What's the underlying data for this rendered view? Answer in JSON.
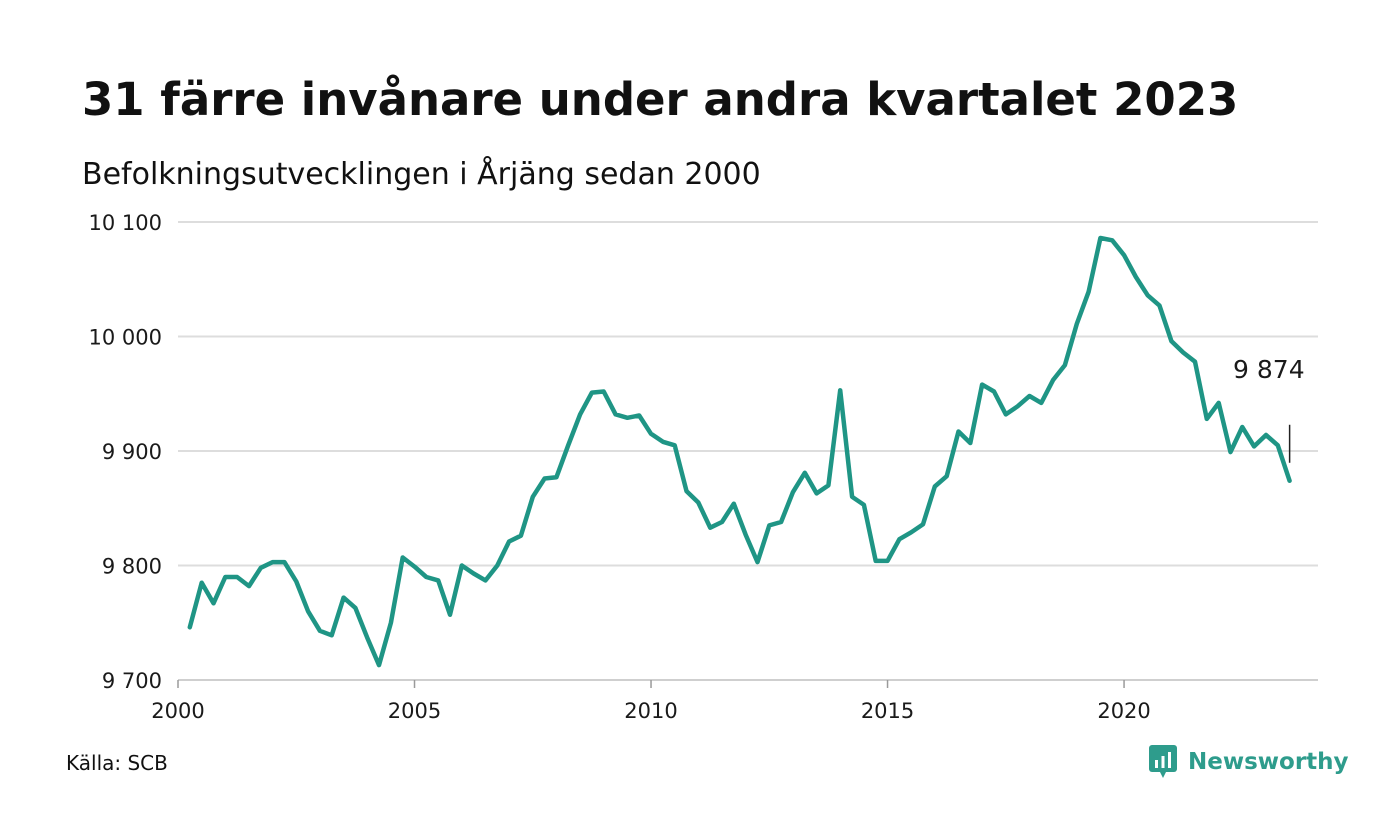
{
  "title": "31 färre invånare under andra kvartalet 2023",
  "subtitle": "Befolkningsutvecklingen i Årjäng sedan 2000",
  "source": "Källa: SCB",
  "brand": {
    "name": "Newsworthy",
    "icon": "newsworthy-logo-icon"
  },
  "colors": {
    "line": "#1f9585",
    "grid": "#dddddd",
    "text": "#111111",
    "brand": "#2e9c8c"
  },
  "chart_data": {
    "type": "line",
    "title": "31 färre invånare under andra kvartalet 2023",
    "subtitle": "Befolkningsutvecklingen i Årjäng sedan 2000",
    "xlabel": "",
    "ylabel": "",
    "xlim": [
      2000,
      2024.1
    ],
    "ylim": [
      9700,
      10100
    ],
    "grid": true,
    "legend": "none",
    "x_ticks": [
      {
        "value": 2000,
        "label": "2000"
      },
      {
        "value": 2005,
        "label": "2005"
      },
      {
        "value": 2010,
        "label": "2010"
      },
      {
        "value": 2015,
        "label": "2015"
      },
      {
        "value": 2020,
        "label": "2020"
      }
    ],
    "y_ticks": [
      {
        "value": 9700,
        "label": "9 700"
      },
      {
        "value": 9800,
        "label": "9 800"
      },
      {
        "value": 9900,
        "label": "9 900"
      },
      {
        "value": 10000,
        "label": "10 000"
      },
      {
        "value": 10100,
        "label": "10 100"
      }
    ],
    "annotation": {
      "label": "9 874",
      "value": 9874
    },
    "series": [
      {
        "x": [
          2000.25,
          2000.5,
          2000.75,
          2001,
          2001.25,
          2001.5,
          2001.75,
          2002,
          2002.25,
          2002.5,
          2002.75,
          2003,
          2003.25,
          2003.5,
          2003.75,
          2004,
          2004.25,
          2004.5,
          2004.75,
          2005,
          2005.25,
          2005.5,
          2005.75,
          2006,
          2006.25,
          2006.5,
          2006.75,
          2007,
          2007.25,
          2007.5,
          2007.75,
          2008,
          2008.25,
          2008.5,
          2008.75,
          2009,
          2009.25,
          2009.5,
          2009.75,
          2010,
          2010.25,
          2010.5,
          2010.75,
          2011,
          2011.25,
          2011.5,
          2011.75,
          2012,
          2012.25,
          2012.5,
          2012.75,
          2013,
          2013.25,
          2013.5,
          2013.75,
          2014,
          2014.25,
          2014.5,
          2014.75,
          2015,
          2015.25,
          2015.5,
          2015.75,
          2016,
          2016.25,
          2016.5,
          2016.75,
          2017,
          2017.25,
          2017.5,
          2017.75,
          2018,
          2018.25,
          2018.5,
          2018.75,
          2019,
          2019.25,
          2019.5,
          2019.75,
          2020,
          2020.25,
          2020.5,
          2020.75,
          2021,
          2021.25,
          2021.5,
          2021.75,
          2022,
          2022.25,
          2022.5,
          2022.75,
          2023,
          2023.25,
          2023.5
        ],
        "values": [
          9746,
          9785,
          9767,
          9790,
          9790,
          9782,
          9798,
          9803,
          9803,
          9786,
          9760,
          9743,
          9739,
          9772,
          9763,
          9737,
          9713,
          9750,
          9807,
          9799,
          9790,
          9787,
          9757,
          9800,
          9793,
          9787,
          9800,
          9821,
          9826,
          9860,
          9876,
          9877,
          9905,
          9932,
          9951,
          9952,
          9932,
          9929,
          9931,
          9915,
          9908,
          9905,
          9865,
          9855,
          9833,
          9838,
          9854,
          9827,
          9803,
          9835,
          9838,
          9864,
          9881,
          9863,
          9870,
          9953,
          9860,
          9853,
          9804,
          9804,
          9823,
          9829,
          9836,
          9869,
          9878,
          9917,
          9907,
          9958,
          9952,
          9932,
          9939,
          9948,
          9942,
          9962,
          9975,
          10011,
          10039,
          10086,
          10084,
          10071,
          10052,
          10036,
          10027,
          9996,
          9986,
          9978,
          9928,
          9942,
          9899,
          9921,
          9904,
          9914,
          9905,
          9874
        ]
      }
    ]
  }
}
